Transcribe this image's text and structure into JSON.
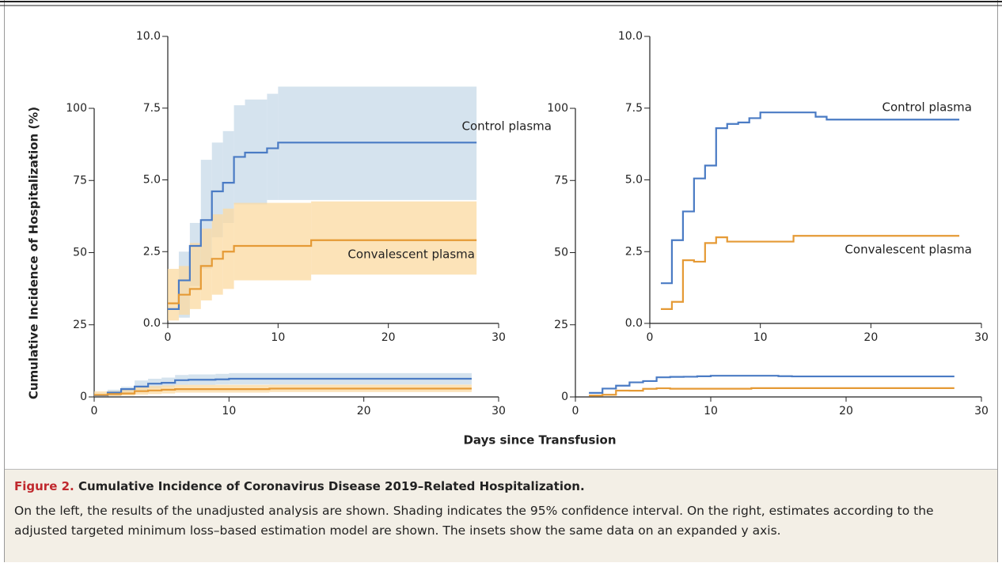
{
  "figure": {
    "label": "Figure 2.",
    "title": "Cumulative Incidence of Coronavirus Disease 2019–Related Hospitalization.",
    "caption": "On the left, the results of the unadjusted analysis are shown. Shading indicates the 95% confidence interval. On the right, estimates according to the adjusted targeted minimum loss–based estimation model are shown. The insets show the same data on an expanded y axis.",
    "ylabel": "Cumulative Incidence of Hospitalization (%)",
    "xlabel": "Days since Transfusion"
  },
  "chart_data": [
    {
      "type": "line",
      "step": true,
      "xlim": [
        0,
        30
      ],
      "xticks": [
        0,
        10,
        20,
        30
      ],
      "ylim": [
        0,
        100
      ],
      "yticks": [
        0,
        25,
        50,
        75,
        100
      ],
      "inset": {
        "xlim": [
          0,
          30
        ],
        "xticks": [
          0,
          10,
          20,
          30
        ],
        "ylim": [
          0,
          10
        ],
        "yticks": [
          {
            "value": 0,
            "label": "0.0"
          },
          2.5,
          {
            "value": 5,
            "label": "5.0"
          },
          7.5,
          {
            "value": 10,
            "label": "10.0"
          }
        ]
      },
      "series": [
        {
          "name": "Control plasma",
          "color": "#4a7bc4",
          "band_color": "#c7d9e8",
          "x": [
            0,
            1,
            2,
            3,
            4,
            5,
            6,
            7,
            9,
            10,
            28
          ],
          "values": [
            0.5,
            1.5,
            2.7,
            3.6,
            4.6,
            4.9,
            5.8,
            5.95,
            6.1,
            6.3,
            6.3
          ],
          "lower": [
            null,
            0.2,
            1.3,
            1.9,
            3.0,
            3.5,
            4.15,
            4.15,
            4.3,
            4.3,
            4.3
          ],
          "upper": [
            null,
            2.5,
            3.5,
            5.7,
            6.3,
            6.7,
            7.6,
            7.8,
            8.0,
            8.25,
            8.25
          ]
        },
        {
          "name": "Convalescent plasma",
          "color": "#e59a35",
          "band_color": "#fbd9a0",
          "x": [
            0,
            1,
            2,
            3,
            4,
            5,
            6,
            13,
            28
          ],
          "values": [
            0.7,
            1.0,
            1.2,
            2.0,
            2.25,
            2.5,
            2.7,
            2.9,
            2.9
          ],
          "lower": [
            0.1,
            0.3,
            0.5,
            0.8,
            1.0,
            1.2,
            1.5,
            1.7,
            1.7
          ],
          "upper": [
            1.9,
            2.0,
            2.8,
            3.3,
            3.8,
            4.0,
            4.2,
            4.25,
            4.25
          ]
        }
      ]
    },
    {
      "type": "line",
      "step": true,
      "xlim": [
        0,
        30
      ],
      "xticks": [
        0,
        10,
        20,
        30
      ],
      "ylim": [
        0,
        100
      ],
      "yticks": [
        0,
        25,
        50,
        75,
        100
      ],
      "inset": {
        "xlim": [
          0,
          30
        ],
        "xticks": [
          0,
          10,
          20,
          30
        ],
        "ylim": [
          0,
          10
        ],
        "yticks": [
          {
            "value": 0,
            "label": "0.0"
          },
          2.5,
          {
            "value": 5,
            "label": "5.0"
          },
          7.5,
          {
            "value": 10,
            "label": "10.0"
          }
        ]
      },
      "series": [
        {
          "name": "Control plasma",
          "color": "#4a7bc4",
          "x": [
            1,
            2,
            3,
            4,
            5,
            6,
            7,
            8,
            9,
            10,
            15,
            16,
            28
          ],
          "values": [
            1.4,
            2.9,
            3.9,
            5.05,
            5.5,
            6.8,
            6.95,
            7.0,
            7.15,
            7.35,
            7.2,
            7.1,
            7.1
          ]
        },
        {
          "name": "Convalescent plasma",
          "color": "#e59a35",
          "x": [
            1,
            2,
            3,
            4,
            5,
            6,
            7,
            13,
            28
          ],
          "values": [
            0.5,
            0.75,
            2.2,
            2.15,
            2.8,
            3.0,
            2.85,
            3.05,
            3.05
          ]
        }
      ]
    }
  ]
}
